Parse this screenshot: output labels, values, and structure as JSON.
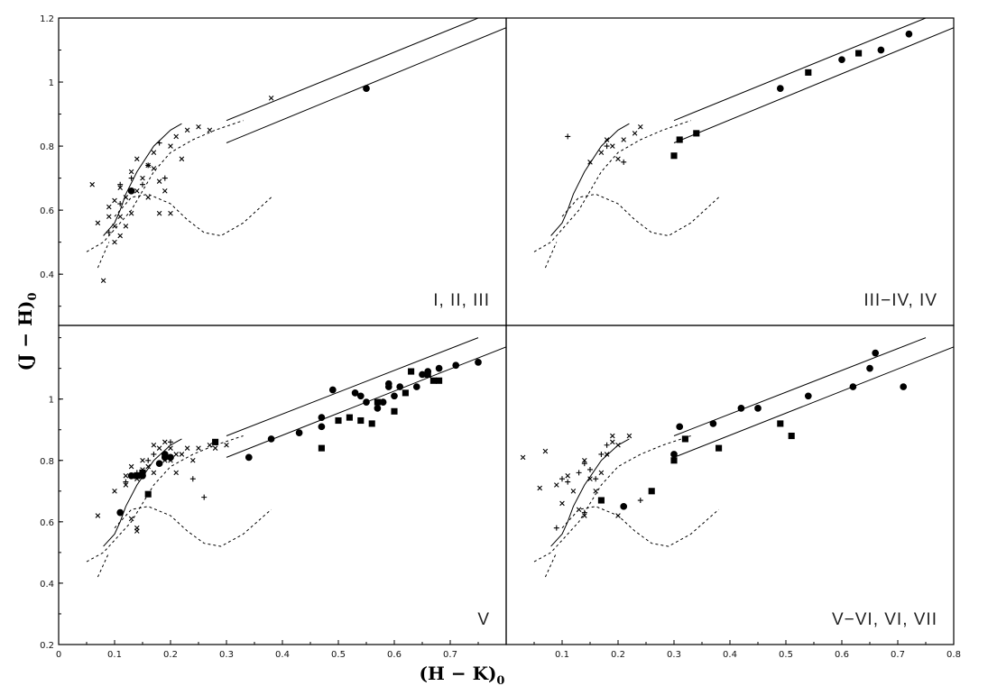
{
  "chart_data": {
    "type": "scatter",
    "layout": "2x2 panels sharing axes",
    "xlabel": "(H − K)",
    "xlabel_sub": "0",
    "ylabel": "(J − H)",
    "ylabel_sub": "0",
    "xlim": [
      0,
      0.8
    ],
    "xticks_left": [
      "0",
      "0.1",
      "0.2",
      "0.3",
      "0.4",
      "0.5",
      "0.6",
      "0.7"
    ],
    "xticks_right": [
      "0.1",
      "0.2",
      "0.3",
      "0.4",
      "0.5",
      "0.6",
      "0.7",
      "0.8"
    ],
    "ylim": [
      0.2,
      1.2
    ],
    "yticks_top": [
      "1.2",
      "1",
      "0.8",
      "0.6",
      "0.4"
    ],
    "yticks_bottom": [
      "1",
      "0.8",
      "0.6",
      "0.4",
      "0.2"
    ],
    "grid": false,
    "reference_curves": {
      "giants_solid": [
        [
          0.08,
          0.52
        ],
        [
          0.1,
          0.56
        ],
        [
          0.11,
          0.6
        ],
        [
          0.12,
          0.65
        ],
        [
          0.14,
          0.72
        ],
        [
          0.17,
          0.8
        ],
        [
          0.2,
          0.85
        ],
        [
          0.22,
          0.87
        ]
      ],
      "dwarfs_dashed": [
        [
          0.05,
          0.47
        ],
        [
          0.08,
          0.5
        ],
        [
          0.1,
          0.54
        ],
        [
          0.13,
          0.6
        ],
        [
          0.15,
          0.66
        ],
        [
          0.17,
          0.72
        ],
        [
          0.2,
          0.78
        ],
        [
          0.24,
          0.82
        ],
        [
          0.28,
          0.85
        ],
        [
          0.33,
          0.88
        ]
      ],
      "lower_dashed_left": [
        [
          0.07,
          0.42
        ],
        [
          0.09,
          0.5
        ]
      ],
      "lower_dashed": [
        [
          0.1,
          0.58
        ],
        [
          0.13,
          0.64
        ],
        [
          0.16,
          0.65
        ],
        [
          0.2,
          0.62
        ],
        [
          0.23,
          0.57
        ],
        [
          0.26,
          0.53
        ],
        [
          0.29,
          0.52
        ],
        [
          0.33,
          0.56
        ],
        [
          0.38,
          0.64
        ]
      ],
      "band_upper": [
        [
          0.3,
          0.88
        ],
        [
          0.75,
          1.2
        ]
      ],
      "band_lower": [
        [
          0.3,
          0.81
        ],
        [
          0.8,
          1.17
        ]
      ]
    },
    "panels": [
      {
        "label": "I,  II,  III",
        "series": [
          {
            "marker": "x",
            "points": [
              [
                0.06,
                0.68
              ],
              [
                0.07,
                0.56
              ],
              [
                0.08,
                0.38
              ],
              [
                0.09,
                0.61
              ],
              [
                0.09,
                0.58
              ],
              [
                0.1,
                0.63
              ],
              [
                0.1,
                0.55
              ],
              [
                0.1,
                0.5
              ],
              [
                0.11,
                0.67
              ],
              [
                0.11,
                0.58
              ],
              [
                0.11,
                0.52
              ],
              [
                0.12,
                0.64
              ],
              [
                0.12,
                0.55
              ],
              [
                0.13,
                0.72
              ],
              [
                0.13,
                0.59
              ],
              [
                0.14,
                0.76
              ],
              [
                0.14,
                0.66
              ],
              [
                0.15,
                0.7
              ],
              [
                0.16,
                0.74
              ],
              [
                0.16,
                0.64
              ],
              [
                0.17,
                0.78
              ],
              [
                0.17,
                0.73
              ],
              [
                0.18,
                0.69
              ],
              [
                0.18,
                0.59
              ],
              [
                0.19,
                0.66
              ],
              [
                0.2,
                0.8
              ],
              [
                0.2,
                0.59
              ],
              [
                0.21,
                0.83
              ],
              [
                0.22,
                0.76
              ],
              [
                0.23,
                0.85
              ],
              [
                0.25,
                0.86
              ],
              [
                0.27,
                0.85
              ],
              [
                0.38,
                0.95
              ]
            ]
          },
          {
            "marker": "+",
            "points": [
              [
                0.09,
                0.53
              ],
              [
                0.11,
                0.68
              ],
              [
                0.11,
                0.62
              ],
              [
                0.13,
                0.7
              ],
              [
                0.15,
                0.68
              ],
              [
                0.16,
                0.74
              ],
              [
                0.18,
                0.81
              ],
              [
                0.19,
                0.7
              ]
            ]
          },
          {
            "marker": "circle",
            "points": [
              [
                0.13,
                0.66
              ],
              [
                0.55,
                0.98
              ]
            ]
          }
        ]
      },
      {
        "label": "III−IV,  IV",
        "series": [
          {
            "marker": "x",
            "points": [
              [
                0.15,
                0.75
              ],
              [
                0.17,
                0.78
              ],
              [
                0.18,
                0.82
              ],
              [
                0.19,
                0.8
              ],
              [
                0.2,
                0.76
              ],
              [
                0.21,
                0.82
              ],
              [
                0.23,
                0.84
              ],
              [
                0.24,
                0.86
              ]
            ]
          },
          {
            "marker": "+",
            "points": [
              [
                0.11,
                0.83
              ],
              [
                0.18,
                0.8
              ],
              [
                0.21,
                0.75
              ]
            ]
          },
          {
            "marker": "circle",
            "points": [
              [
                0.49,
                0.98
              ],
              [
                0.6,
                1.07
              ],
              [
                0.67,
                1.1
              ],
              [
                0.72,
                1.15
              ]
            ]
          },
          {
            "marker": "square",
            "points": [
              [
                0.3,
                0.77
              ],
              [
                0.31,
                0.82
              ],
              [
                0.34,
                0.84
              ],
              [
                0.54,
                1.03
              ],
              [
                0.63,
                1.09
              ]
            ]
          }
        ]
      },
      {
        "label": "V",
        "series": [
          {
            "marker": "x",
            "points": [
              [
                0.07,
                0.62
              ],
              [
                0.1,
                0.7
              ],
              [
                0.12,
                0.75
              ],
              [
                0.13,
                0.61
              ],
              [
                0.14,
                0.58
              ],
              [
                0.14,
                0.57
              ],
              [
                0.14,
                0.74
              ],
              [
                0.15,
                0.8
              ],
              [
                0.15,
                0.77
              ],
              [
                0.16,
                0.78
              ],
              [
                0.17,
                0.85
              ],
              [
                0.17,
                0.76
              ],
              [
                0.18,
                0.84
              ],
              [
                0.18,
                0.79
              ],
              [
                0.19,
                0.86
              ],
              [
                0.19,
                0.8
              ],
              [
                0.2,
                0.84
              ],
              [
                0.2,
                0.8
              ],
              [
                0.21,
                0.82
              ],
              [
                0.21,
                0.76
              ],
              [
                0.22,
                0.82
              ],
              [
                0.23,
                0.84
              ],
              [
                0.24,
                0.8
              ],
              [
                0.25,
                0.84
              ],
              [
                0.27,
                0.85
              ],
              [
                0.28,
                0.84
              ],
              [
                0.3,
                0.85
              ],
              [
                0.12,
                0.72
              ],
              [
                0.13,
                0.78
              ]
            ]
          },
          {
            "marker": "+",
            "points": [
              [
                0.12,
                0.73
              ],
              [
                0.14,
                0.76
              ],
              [
                0.15,
                0.75
              ],
              [
                0.16,
                0.8
              ],
              [
                0.17,
                0.82
              ],
              [
                0.19,
                0.82
              ],
              [
                0.2,
                0.86
              ],
              [
                0.24,
                0.74
              ],
              [
                0.26,
                0.68
              ]
            ]
          },
          {
            "marker": "circle",
            "points": [
              [
                0.11,
                0.63
              ],
              [
                0.13,
                0.75
              ],
              [
                0.15,
                0.75
              ],
              [
                0.18,
                0.79
              ],
              [
                0.19,
                0.82
              ],
              [
                0.19,
                0.81
              ],
              [
                0.2,
                0.81
              ],
              [
                0.34,
                0.81
              ],
              [
                0.38,
                0.87
              ],
              [
                0.43,
                0.89
              ],
              [
                0.47,
                0.91
              ],
              [
                0.47,
                0.94
              ],
              [
                0.49,
                1.03
              ],
              [
                0.53,
                1.02
              ],
              [
                0.54,
                1.01
              ],
              [
                0.55,
                0.99
              ],
              [
                0.57,
                0.97
              ],
              [
                0.58,
                0.99
              ],
              [
                0.59,
                1.04
              ],
              [
                0.59,
                1.05
              ],
              [
                0.6,
                1.01
              ],
              [
                0.61,
                1.04
              ],
              [
                0.64,
                1.04
              ],
              [
                0.65,
                1.08
              ],
              [
                0.66,
                1.09
              ],
              [
                0.68,
                1.1
              ],
              [
                0.71,
                1.11
              ],
              [
                0.75,
                1.12
              ]
            ]
          },
          {
            "marker": "square",
            "points": [
              [
                0.14,
                0.75
              ],
              [
                0.15,
                0.76
              ],
              [
                0.16,
                0.69
              ],
              [
                0.28,
                0.86
              ],
              [
                0.47,
                0.84
              ],
              [
                0.5,
                0.93
              ],
              [
                0.52,
                0.94
              ],
              [
                0.54,
                0.93
              ],
              [
                0.56,
                0.92
              ],
              [
                0.57,
                0.99
              ],
              [
                0.6,
                0.96
              ],
              [
                0.62,
                1.02
              ],
              [
                0.63,
                1.09
              ],
              [
                0.66,
                1.08
              ],
              [
                0.67,
                1.06
              ],
              [
                0.68,
                1.06
              ]
            ]
          }
        ]
      },
      {
        "label": "V−VI,  VI,  VII",
        "series": [
          {
            "marker": "x",
            "points": [
              [
                0.03,
                0.81
              ],
              [
                0.07,
                0.83
              ],
              [
                0.09,
                0.72
              ],
              [
                0.1,
                0.66
              ],
              [
                0.11,
                0.75
              ],
              [
                0.12,
                0.7
              ],
              [
                0.13,
                0.64
              ],
              [
                0.14,
                0.62
              ],
              [
                0.14,
                0.8
              ],
              [
                0.15,
                0.74
              ],
              [
                0.16,
                0.7
              ],
              [
                0.17,
                0.76
              ],
              [
                0.18,
                0.82
              ],
              [
                0.19,
                0.86
              ],
              [
                0.19,
                0.88
              ],
              [
                0.2,
                0.62
              ],
              [
                0.2,
                0.85
              ],
              [
                0.22,
                0.88
              ],
              [
                0.06,
                0.71
              ]
            ]
          },
          {
            "marker": "+",
            "points": [
              [
                0.09,
                0.58
              ],
              [
                0.1,
                0.74
              ],
              [
                0.11,
                0.73
              ],
              [
                0.13,
                0.76
              ],
              [
                0.14,
                0.79
              ],
              [
                0.15,
                0.77
              ],
              [
                0.16,
                0.74
              ],
              [
                0.17,
                0.82
              ],
              [
                0.18,
                0.85
              ],
              [
                0.24,
                0.67
              ],
              [
                0.14,
                0.63
              ]
            ]
          },
          {
            "marker": "circle",
            "points": [
              [
                0.21,
                0.65
              ],
              [
                0.3,
                0.82
              ],
              [
                0.31,
                0.91
              ],
              [
                0.37,
                0.92
              ],
              [
                0.42,
                0.97
              ],
              [
                0.45,
                0.97
              ],
              [
                0.54,
                1.01
              ],
              [
                0.62,
                1.04
              ],
              [
                0.65,
                1.1
              ],
              [
                0.66,
                1.15
              ],
              [
                0.71,
                1.04
              ]
            ]
          },
          {
            "marker": "square",
            "points": [
              [
                0.17,
                0.67
              ],
              [
                0.26,
                0.7
              ],
              [
                0.3,
                0.8
              ],
              [
                0.32,
                0.87
              ],
              [
                0.38,
                0.84
              ],
              [
                0.49,
                0.92
              ],
              [
                0.51,
                0.88
              ]
            ]
          }
        ]
      }
    ]
  }
}
